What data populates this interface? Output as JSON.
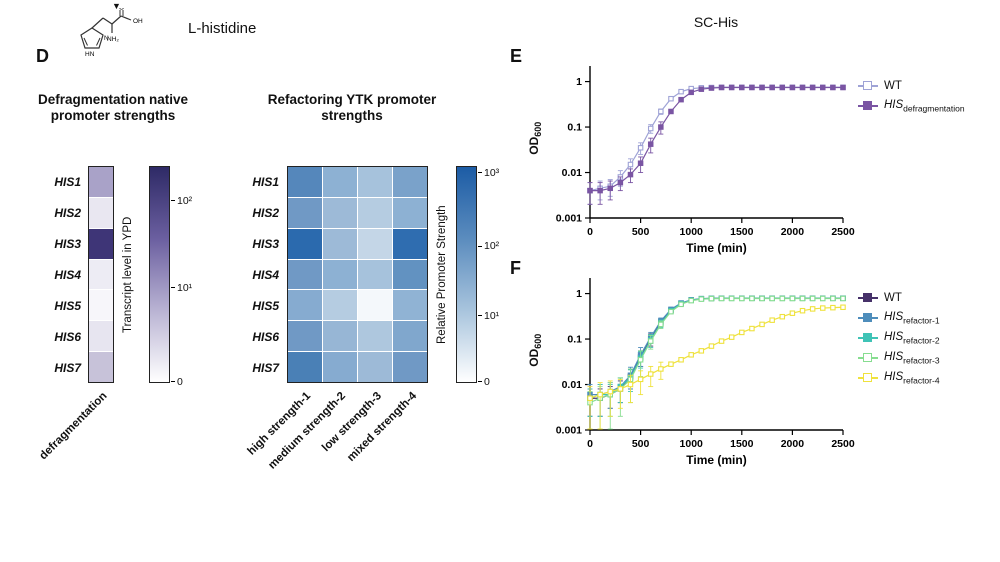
{
  "molecule": {
    "caption": "L-histidine",
    "marker": "▼",
    "atoms": [
      "HN",
      "N",
      "NH₂",
      "O",
      "OH"
    ]
  },
  "panels": {
    "d": "D",
    "e": "E",
    "f": "F"
  },
  "chart_data": [
    {
      "type": "heatmap",
      "title": "Defragmentation native promoter strengths",
      "rows": [
        "HIS1",
        "HIS2",
        "HIS3",
        "HIS4",
        "HIS5",
        "HIS6",
        "HIS7"
      ],
      "columns": [
        "defragmentation"
      ],
      "values": [
        [
          25
        ],
        [
          5
        ],
        [
          100
        ],
        [
          4
        ],
        [
          2
        ],
        [
          5
        ],
        [
          15
        ]
      ],
      "cell_colors": [
        [
          "#a9a2c8"
        ],
        [
          "#e9e7f1"
        ],
        [
          "#3e3577"
        ],
        [
          "#edecf4"
        ],
        [
          "#f7f6fa"
        ],
        [
          "#e7e5f0"
        ],
        [
          "#c7c2d9"
        ]
      ],
      "colorbar_label": "Transcript level in YPD",
      "colorbar_gradient": [
        "#ffffff",
        "#b9b3d3",
        "#6b5fa0",
        "#2e2a66"
      ],
      "colorbar_ticks": [
        {
          "label": "10²",
          "pos": 0.16
        },
        {
          "label": "10¹",
          "pos": 0.56
        },
        {
          "label": "0",
          "pos": 0.995
        }
      ]
    },
    {
      "type": "heatmap",
      "title": "Refactoring YTK promoter strengths",
      "rows": [
        "HIS1",
        "HIS2",
        "HIS3",
        "HIS4",
        "HIS5",
        "HIS6",
        "HIS7"
      ],
      "columns": [
        "high strength-1",
        "medium strength-2",
        "low strength-3",
        "mixed strength-4"
      ],
      "values": [
        [
          500,
          150,
          80,
          250
        ],
        [
          300,
          100,
          50,
          150
        ],
        [
          900,
          100,
          30,
          900
        ],
        [
          300,
          150,
          80,
          400
        ],
        [
          200,
          60,
          2,
          180
        ],
        [
          300,
          120,
          70,
          220
        ],
        [
          600,
          200,
          100,
          300
        ]
      ],
      "cell_colors": [
        [
          "#5587bb",
          "#8db1d3",
          "#a6c2dc",
          "#7aa2ca"
        ],
        [
          "#7099c5",
          "#9dbad7",
          "#b5cce1",
          "#8db1d3"
        ],
        [
          "#2b6aae",
          "#9dbad7",
          "#c4d6e7",
          "#2f6db0"
        ],
        [
          "#7099c5",
          "#8db1d3",
          "#a6c2dc",
          "#6292c1"
        ],
        [
          "#86abd0",
          "#b5cce1",
          "#f4f8fb",
          "#90b3d4"
        ],
        [
          "#7099c5",
          "#97b6d5",
          "#aec7de",
          "#80a7cd"
        ],
        [
          "#4a80b6",
          "#86abd0",
          "#9dbad7",
          "#7099c5"
        ]
      ],
      "colorbar_label": "Relative Promoter Strength",
      "colorbar_gradient": [
        "#ffffff",
        "#a8c4dd",
        "#5b8cbe",
        "#1c5ca5"
      ],
      "colorbar_ticks": [
        {
          "label": "10³",
          "pos": 0.03
        },
        {
          "label": "10²",
          "pos": 0.37
        },
        {
          "label": "10¹",
          "pos": 0.69
        },
        {
          "label": "0",
          "pos": 0.995
        }
      ]
    },
    {
      "type": "line",
      "panel": "E",
      "title": "SC-His",
      "xlabel": "Time (min)",
      "ylabel_main": "OD",
      "ylabel_sub": "600",
      "xlim": [
        0,
        2500
      ],
      "ylim": [
        0.001,
        2.2
      ],
      "ylog": true,
      "xticks": [
        0,
        500,
        1000,
        1500,
        2000,
        2500
      ],
      "yticks": [
        {
          "v": 1,
          "label": "1"
        },
        {
          "v": 0.1,
          "label": "0.1"
        },
        {
          "v": 0.01,
          "label": "0.01"
        },
        {
          "v": 0.001,
          "label": "0.001"
        }
      ],
      "x": [
        0,
        100,
        200,
        300,
        400,
        500,
        600,
        700,
        800,
        900,
        1000,
        1100,
        1200,
        1300,
        1400,
        1500,
        1600,
        1700,
        1800,
        1900,
        2000,
        2100,
        2200,
        2300,
        2400,
        2500
      ],
      "series": [
        {
          "label_main": "WT",
          "label_sub": "",
          "italic": false,
          "color": "#9fa3d6",
          "open": true,
          "values": [
            0.004,
            0.0045,
            0.005,
            0.008,
            0.015,
            0.035,
            0.093,
            0.22,
            0.42,
            0.6,
            0.7,
            0.73,
            0.74,
            0.75,
            0.75,
            0.75,
            0.75,
            0.75,
            0.75,
            0.75,
            0.75,
            0.75,
            0.75,
            0.75,
            0.75,
            0.75
          ],
          "err": [
            0.002,
            0.002,
            0.002,
            0.003,
            0.005,
            0.01,
            0.02,
            0.03
          ]
        },
        {
          "label_main": "HIS",
          "label_sub": "defragmentation",
          "italic": true,
          "color": "#7a55a3",
          "open": false,
          "values": [
            0.004,
            0.004,
            0.0045,
            0.006,
            0.009,
            0.016,
            0.042,
            0.1,
            0.22,
            0.4,
            0.58,
            0.68,
            0.72,
            0.74,
            0.74,
            0.74,
            0.74,
            0.74,
            0.74,
            0.74,
            0.74,
            0.74,
            0.74,
            0.74,
            0.74,
            0.74
          ],
          "err": [
            0.002,
            0.002,
            0.002,
            0.002,
            0.003,
            0.006,
            0.015,
            0.03
          ]
        }
      ]
    },
    {
      "type": "line",
      "panel": "F",
      "title": "",
      "xlabel": "Time (min)",
      "ylabel_main": "OD",
      "ylabel_sub": "600",
      "xlim": [
        0,
        2500
      ],
      "ylim": [
        0.001,
        2.2
      ],
      "ylog": true,
      "xticks": [
        0,
        500,
        1000,
        1500,
        2000,
        2500
      ],
      "yticks": [
        {
          "v": 1,
          "label": "1"
        },
        {
          "v": 0.1,
          "label": "0.1"
        },
        {
          "v": 0.01,
          "label": "0.01"
        },
        {
          "v": 0.001,
          "label": "0.001"
        }
      ],
      "x": [
        0,
        100,
        200,
        300,
        400,
        500,
        600,
        700,
        800,
        900,
        1000,
        1100,
        1200,
        1300,
        1400,
        1500,
        1600,
        1700,
        1800,
        1900,
        2000,
        2100,
        2200,
        2300,
        2400,
        2500
      ],
      "series": [
        {
          "label_main": "WT",
          "label_sub": "",
          "italic": false,
          "color": "#463169",
          "open": false,
          "values": [
            0.005,
            0.005,
            0.006,
            0.008,
            0.015,
            0.04,
            0.1,
            0.23,
            0.43,
            0.61,
            0.72,
            0.77,
            0.785,
            0.79,
            0.79,
            0.79,
            0.79,
            0.79,
            0.79,
            0.79,
            0.79,
            0.79,
            0.79,
            0.79,
            0.79,
            0.79
          ],
          "err": [
            0.003,
            0.003,
            0.003,
            0.004,
            0.007,
            0.015,
            0.03,
            0.04
          ]
        },
        {
          "label_main": "HIS",
          "label_sub": "refactor-1",
          "italic": true,
          "color": "#4e8dbb",
          "open": false,
          "values": [
            0.006,
            0.006,
            0.007,
            0.009,
            0.016,
            0.045,
            0.11,
            0.25,
            0.45,
            0.62,
            0.73,
            0.775,
            0.785,
            0.79,
            0.79,
            0.79,
            0.79,
            0.79,
            0.79,
            0.79,
            0.79,
            0.79,
            0.79,
            0.79,
            0.79,
            0.79
          ],
          "err": [
            0.004,
            0.004,
            0.004,
            0.005,
            0.008,
            0.02,
            0.03,
            0.04
          ]
        },
        {
          "label_main": "HIS",
          "label_sub": "refactor-2",
          "italic": true,
          "color": "#3fc3b6",
          "open": false,
          "values": [
            0.005,
            0.006,
            0.006,
            0.009,
            0.014,
            0.038,
            0.095,
            0.22,
            0.42,
            0.6,
            0.71,
            0.765,
            0.78,
            0.785,
            0.785,
            0.785,
            0.785,
            0.785,
            0.785,
            0.785,
            0.785,
            0.785,
            0.785,
            0.785,
            0.785,
            0.785
          ],
          "err": [
            0.003,
            0.004,
            0.004,
            0.005,
            0.007,
            0.015,
            0.03,
            0.04
          ]
        },
        {
          "label_main": "HIS",
          "label_sub": "refactor-3",
          "italic": true,
          "color": "#87dd90",
          "open": true,
          "values": [
            0.004,
            0.005,
            0.006,
            0.008,
            0.013,
            0.035,
            0.09,
            0.21,
            0.4,
            0.58,
            0.7,
            0.755,
            0.775,
            0.78,
            0.78,
            0.78,
            0.78,
            0.78,
            0.78,
            0.78,
            0.78,
            0.78,
            0.78,
            0.78,
            0.78,
            0.78
          ],
          "err": [
            0.003,
            0.004,
            0.005,
            0.006,
            0.009,
            0.02,
            0.03,
            0.04
          ]
        },
        {
          "label_main": "HIS",
          "label_sub": "refactor-4",
          "italic": true,
          "color": "#efe23d",
          "open": true,
          "values": [
            0.005,
            0.006,
            0.007,
            0.008,
            0.01,
            0.013,
            0.017,
            0.022,
            0.028,
            0.035,
            0.045,
            0.055,
            0.07,
            0.09,
            0.11,
            0.14,
            0.17,
            0.21,
            0.26,
            0.31,
            0.37,
            0.42,
            0.46,
            0.48,
            0.49,
            0.5
          ],
          "err": [
            0.004,
            0.005,
            0.005,
            0.005,
            0.006,
            0.007,
            0.008,
            0.009
          ]
        }
      ]
    }
  ]
}
